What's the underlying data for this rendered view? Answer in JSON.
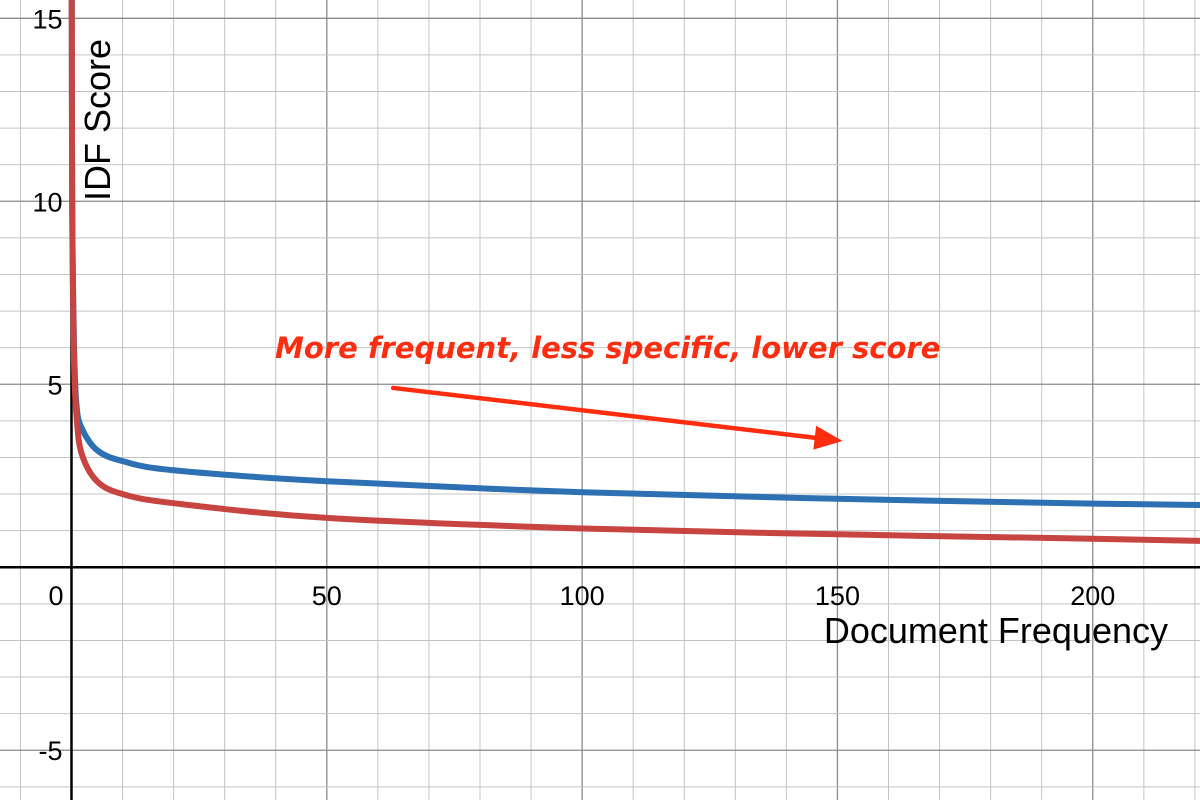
{
  "chart_data": {
    "type": "line",
    "title": "",
    "xlabel": "Document Frequency",
    "ylabel": "IDF Score",
    "xlim": [
      -14,
      221
    ],
    "ylim": [
      -6.36,
      15.5
    ],
    "grid": true,
    "x_ticks": [
      0,
      50,
      100,
      150,
      200
    ],
    "x_tick_labels": [
      "0",
      "50",
      "100",
      "150",
      "200"
    ],
    "y_ticks": [
      -5,
      5,
      10,
      15
    ],
    "y_tick_labels": [
      "-5",
      "5",
      "10",
      "15"
    ],
    "series": [
      {
        "color": "#2d70b3",
        "x": [
          0.05,
          0.1,
          0.2,
          0.5,
          1,
          2,
          5,
          10,
          20,
          50,
          100,
          150,
          200,
          221
        ],
        "y": [
          15.5,
          11.7,
          8.9,
          6.0,
          4.4,
          3.8,
          3.2,
          2.9,
          2.65,
          2.35,
          2.05,
          1.87,
          1.74,
          1.7
        ]
      },
      {
        "color": "#c74440",
        "x": [
          0.05,
          0.1,
          0.2,
          0.5,
          1,
          2,
          5,
          10,
          20,
          50,
          100,
          150,
          200,
          221
        ],
        "y": [
          15.5,
          11.6,
          8.7,
          5.6,
          4.1,
          3.1,
          2.35,
          2.0,
          1.75,
          1.35,
          1.06,
          0.9,
          0.78,
          0.72
        ]
      }
    ],
    "annotation": {
      "text": "More frequent, less specific, lower score",
      "color": "#ff2d0f",
      "arrow_from": [
        63,
        4.9
      ],
      "arrow_to": [
        151,
        3.45
      ]
    }
  }
}
